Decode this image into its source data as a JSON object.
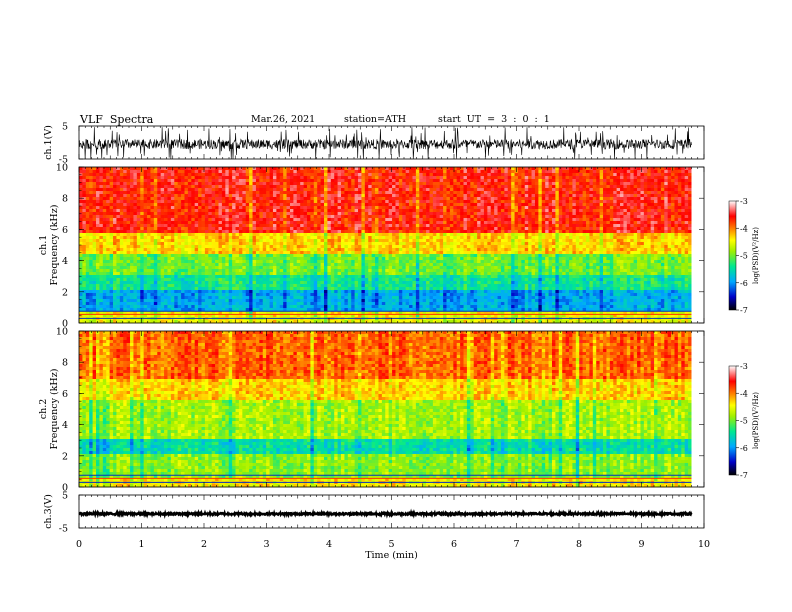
{
  "header": {
    "title": "VLF  Spectra",
    "date": "Mar.26, 2021",
    "station": "station=ATH",
    "start_label": "start  UT  =",
    "start_time": "3 : 0 : 1"
  },
  "chart_data": [
    {
      "type": "line",
      "panel": "ch1-waveform",
      "ylabel": "ch.1(V)",
      "y_ticks": [
        "5",
        "-5"
      ],
      "ylim": [
        -5,
        5
      ],
      "xlim": [
        0,
        10
      ],
      "data_extent_min": 9.8,
      "description_values": {
        "baseline_v": -0.5,
        "typical_amplitude_v": 1.5,
        "max_spike_v": 5
      }
    },
    {
      "type": "heatmap",
      "panel": "ch1-spectrogram",
      "ylabel": "ch.1\nFrequency (kHz)",
      "ylabel_lines": [
        "ch.1",
        "Frequency (kHz)"
      ],
      "y_ticks": [
        "0",
        "2",
        "4",
        "6",
        "8",
        "10"
      ],
      "ylim": [
        0,
        10
      ],
      "xlim": [
        0,
        10
      ],
      "data_extent_min": 9.8,
      "bands": [
        {
          "f_from": 5.8,
          "f_to": 10.0,
          "level": -3.6
        },
        {
          "f_from": 4.5,
          "f_to": 5.8,
          "level": -4.3
        },
        {
          "f_from": 3.0,
          "f_to": 4.5,
          "level": -5.0
        },
        {
          "f_from": 2.2,
          "f_to": 3.0,
          "level": -5.4
        },
        {
          "f_from": 0.8,
          "f_to": 2.2,
          "level": -5.9
        },
        {
          "f_from": 0.0,
          "f_to": 0.8,
          "level": -4.5
        }
      ]
    },
    {
      "type": "heatmap",
      "panel": "ch2-spectrogram",
      "ylabel_lines": [
        "ch.2",
        "Frequency (kHz)"
      ],
      "y_ticks": [
        "0",
        "2",
        "4",
        "6",
        "8",
        "10"
      ],
      "ylim": [
        0,
        10
      ],
      "xlim": [
        0,
        10
      ],
      "data_extent_min": 9.8,
      "bands": [
        {
          "f_from": 7.0,
          "f_to": 10.0,
          "level": -3.9
        },
        {
          "f_from": 5.5,
          "f_to": 7.0,
          "level": -4.3
        },
        {
          "f_from": 3.0,
          "f_to": 5.5,
          "level": -4.8
        },
        {
          "f_from": 2.2,
          "f_to": 3.0,
          "level": -5.5
        },
        {
          "f_from": 0.6,
          "f_to": 2.2,
          "level": -4.9
        },
        {
          "f_from": 0.0,
          "f_to": 0.6,
          "level": -4.4
        }
      ]
    },
    {
      "type": "line",
      "panel": "ch3-waveform",
      "ylabel": "ch.3(V)",
      "y_ticks": [
        "5",
        "-5"
      ],
      "ylim": [
        -5,
        5
      ],
      "xlim": [
        0,
        10
      ],
      "data_extent_min": 9.8,
      "description_values": {
        "baseline_v": -0.7,
        "typical_amplitude_v": 0.3
      }
    }
  ],
  "x_axis": {
    "label": "Time  (min)",
    "ticks": [
      "0",
      "1",
      "2",
      "3",
      "4",
      "5",
      "6",
      "7",
      "8",
      "9",
      "10"
    ]
  },
  "colorbars": [
    {
      "label": "log(PSD)(V²/Hz)",
      "ticks": [
        "-3",
        "-4",
        "-5",
        "-6",
        "-7"
      ],
      "range": [
        -7,
        -3
      ]
    },
    {
      "label": "log(PSD)(V²/Hz)",
      "ticks": [
        "-3",
        "-4",
        "-5",
        "-6",
        "-7"
      ],
      "range": [
        -7,
        -3
      ]
    }
  ]
}
